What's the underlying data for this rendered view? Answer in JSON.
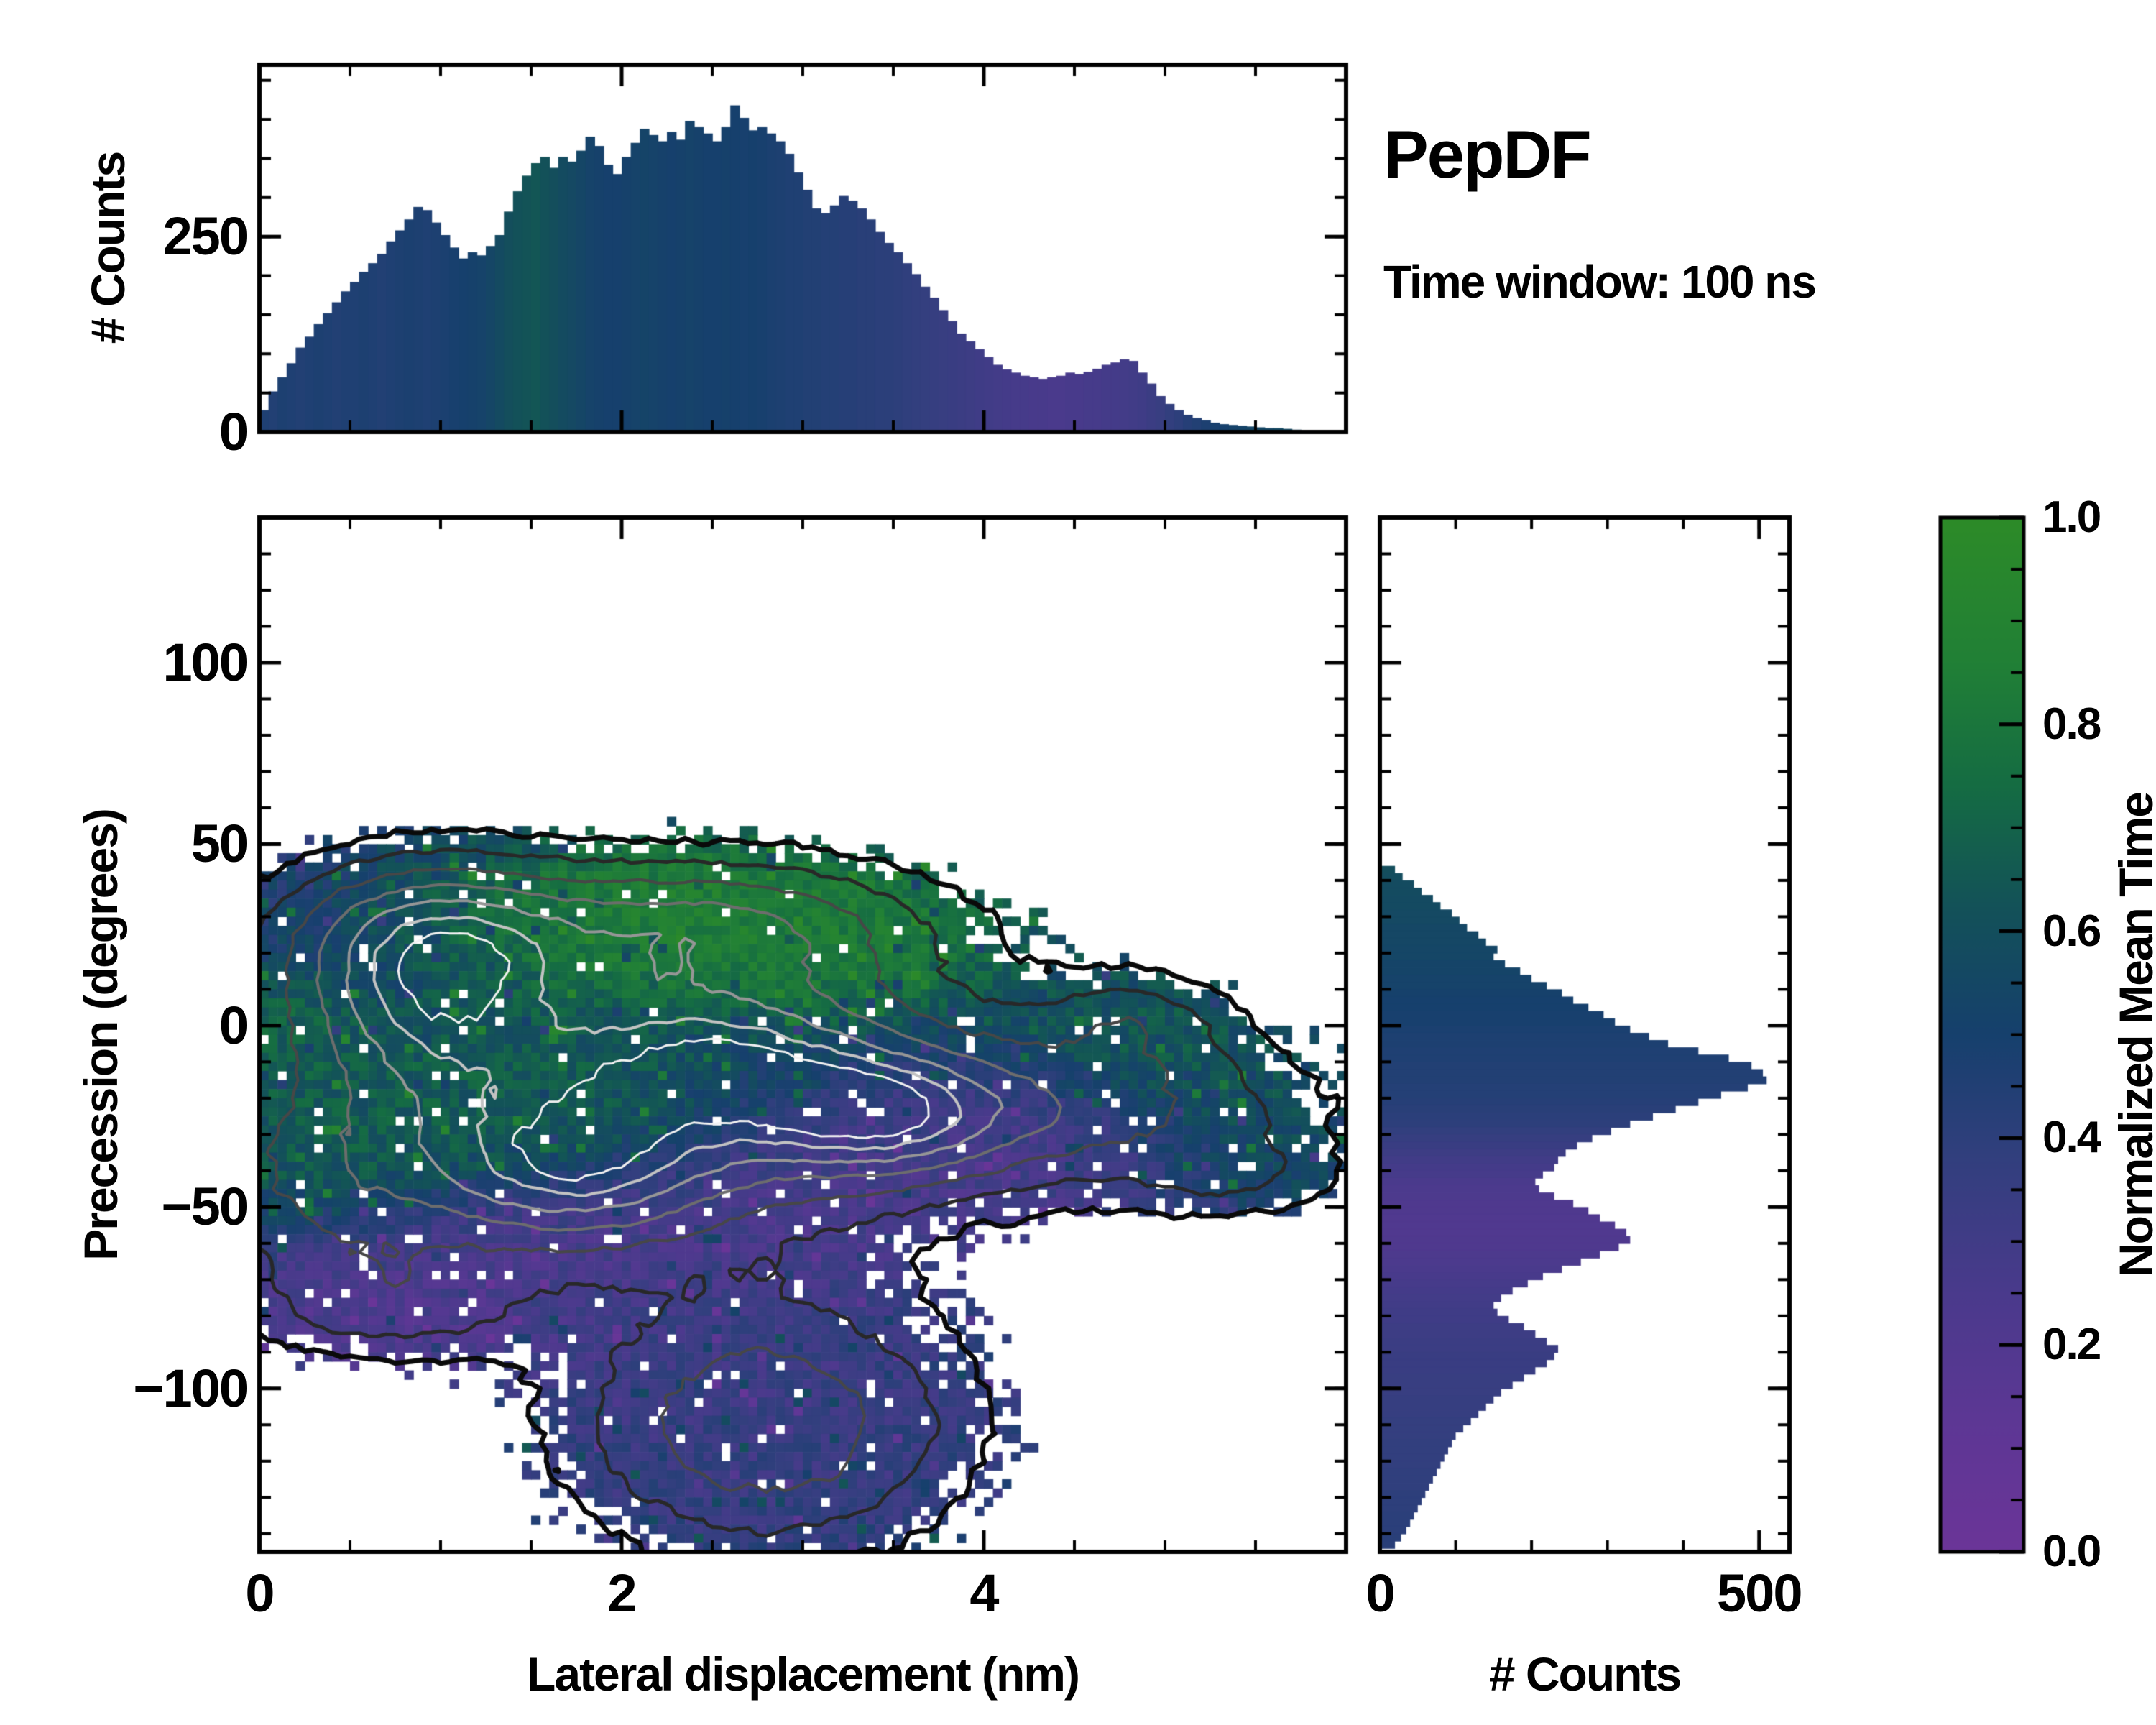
{
  "header": {
    "title": "PepDF",
    "subtitle": "Time window: 100 ns"
  },
  "colormap": {
    "stops": [
      [
        0,
        "#6b3598"
      ],
      [
        0.12,
        "#5e3795"
      ],
      [
        0.25,
        "#4a3a8c"
      ],
      [
        0.38,
        "#323f7e"
      ],
      [
        0.5,
        "#16406d"
      ],
      [
        0.62,
        "#135159"
      ],
      [
        0.74,
        "#156c43"
      ],
      [
        0.86,
        "#218036"
      ],
      [
        1,
        "#2d8b28"
      ]
    ]
  },
  "chart_data": [
    {
      "id": "top_histogram",
      "type": "bar",
      "ylabel": "# Counts",
      "xlim": [
        0,
        6
      ],
      "ylim": [
        0,
        470
      ],
      "ytick_labels": [
        "0",
        "250"
      ],
      "ytick_values": [
        0,
        250
      ],
      "ytick_minor_step": 50,
      "xtick_minor_step": 0.5,
      "xtick_major_values": [
        0,
        2,
        4
      ],
      "bin_width": 0.05,
      "x_start": 0,
      "values": [
        28,
        52,
        70,
        88,
        108,
        122,
        138,
        152,
        166,
        180,
        192,
        205,
        216,
        228,
        244,
        258,
        272,
        288,
        284,
        268,
        252,
        236,
        222,
        230,
        226,
        238,
        252,
        282,
        308,
        328,
        344,
        352,
        338,
        352,
        346,
        360,
        378,
        366,
        342,
        330,
        352,
        370,
        388,
        380,
        372,
        384,
        374,
        398,
        390,
        382,
        372,
        390,
        418,
        402,
        386,
        390,
        382,
        372,
        356,
        332,
        310,
        286,
        280,
        290,
        302,
        296,
        286,
        272,
        256,
        242,
        230,
        216,
        202,
        186,
        172,
        156,
        142,
        126,
        116,
        106,
        96,
        86,
        80,
        76,
        72,
        70,
        68,
        70,
        72,
        76,
        74,
        77,
        81,
        86,
        89,
        93,
        91,
        76,
        62,
        46,
        36,
        28,
        22,
        18,
        15,
        12,
        10,
        9,
        8,
        7,
        6,
        5,
        5,
        4,
        3,
        2
      ],
      "mean_time": [
        0.46,
        0.45,
        0.47,
        0.46,
        0.45,
        0.46,
        0.47,
        0.46,
        0.45,
        0.46,
        0.46,
        0.47,
        0.46,
        0.45,
        0.46,
        0.47,
        0.48,
        0.47,
        0.46,
        0.47,
        0.48,
        0.49,
        0.5,
        0.51,
        0.52,
        0.54,
        0.57,
        0.6,
        0.62,
        0.63,
        0.64,
        0.62,
        0.6,
        0.58,
        0.56,
        0.54,
        0.52,
        0.51,
        0.5,
        0.5,
        0.51,
        0.52,
        0.53,
        0.52,
        0.51,
        0.5,
        0.51,
        0.52,
        0.51,
        0.5,
        0.5,
        0.51,
        0.5,
        0.49,
        0.5,
        0.49,
        0.48,
        0.47,
        0.46,
        0.46,
        0.45,
        0.45,
        0.44,
        0.44,
        0.43,
        0.43,
        0.42,
        0.42,
        0.41,
        0.41,
        0.4,
        0.39,
        0.38,
        0.37,
        0.36,
        0.35,
        0.34,
        0.33,
        0.32,
        0.31,
        0.3,
        0.29,
        0.28,
        0.27,
        0.27,
        0.26,
        0.26,
        0.25,
        0.25,
        0.26,
        0.26,
        0.27,
        0.27,
        0.28,
        0.28,
        0.29,
        0.3,
        0.31,
        0.33,
        0.35,
        0.38,
        0.4,
        0.43,
        0.45,
        0.47,
        0.49,
        0.5,
        0.52,
        0.53,
        0.54,
        0.55,
        0.55,
        0.56,
        0.56,
        0.55,
        0.54
      ]
    },
    {
      "id": "joint_heatmap",
      "type": "heatmap",
      "xlabel": "Lateral displacement (nm)",
      "ylabel": "Precession (degrees)",
      "color_label": "Normalized Mean Time",
      "xlim": [
        0,
        6
      ],
      "ylim": [
        -145,
        140
      ],
      "xtick_labels": [
        "0",
        "2",
        "4"
      ],
      "xtick_values": [
        0,
        2,
        4
      ],
      "ytick_labels": [
        "100",
        "50",
        "0",
        "−50",
        "−100"
      ],
      "ytick_values": [
        100,
        50,
        0,
        -50,
        -100
      ],
      "xtick_minor_step": 0.5,
      "ytick_minor_step": 10,
      "cell_size": [
        0.05,
        2.5
      ],
      "occupancy_threshold": 0.1,
      "mean_time_base": 0.44,
      "density_blobs": [
        [
          2.0,
          -15,
          1.3,
          30,
          0.55
        ],
        [
          0.95,
          8,
          0.5,
          18,
          0.38
        ],
        [
          1.7,
          -40,
          0.55,
          14,
          0.42
        ],
        [
          3.45,
          -25,
          0.5,
          12,
          0.46
        ],
        [
          2.6,
          -10,
          0.6,
          14,
          0.3
        ],
        [
          0.9,
          27,
          0.55,
          14,
          0.34
        ],
        [
          2.5,
          28,
          0.8,
          12,
          0.34
        ],
        [
          2.8,
          -110,
          0.75,
          24,
          0.42
        ],
        [
          4.7,
          -22,
          0.8,
          15,
          0.3
        ],
        [
          4.85,
          2,
          0.35,
          9,
          0.18
        ],
        [
          5.4,
          -42,
          0.4,
          8,
          0.15
        ],
        [
          0.7,
          -77,
          0.55,
          11,
          0.22
        ],
        [
          0.35,
          -45,
          0.5,
          18,
          0.22
        ]
      ],
      "mean_time_blobs": [
        [
          2.3,
          30,
          0.9,
          13,
          0.95,
          5
        ],
        [
          3.3,
          22,
          0.5,
          12,
          0.85,
          3
        ],
        [
          1.3,
          -18,
          0.8,
          20,
          0.75,
          2.5
        ],
        [
          0.35,
          -38,
          0.45,
          16,
          0.72,
          2.5
        ],
        [
          0.1,
          0,
          0.25,
          10,
          0.8,
          2.5
        ],
        [
          2.1,
          -58,
          1.1,
          10,
          0.2,
          4
        ],
        [
          3.6,
          -45,
          0.8,
          14,
          0.22,
          3
        ],
        [
          4.3,
          -30,
          0.45,
          10,
          0.25,
          2.5
        ],
        [
          0.7,
          -78,
          0.6,
          11,
          0.17,
          6
        ],
        [
          5.2,
          -12,
          0.6,
          12,
          0.68,
          2.5
        ],
        [
          5.6,
          -35,
          0.4,
          10,
          0.62,
          2.5
        ],
        [
          4.85,
          2,
          0.35,
          9,
          0.7,
          2.5
        ],
        [
          2.8,
          -112,
          0.9,
          22,
          0.3,
          2.5
        ],
        [
          2.3,
          -90,
          0.7,
          8,
          0.25,
          1.5
        ],
        [
          0.6,
          30,
          0.7,
          15,
          0.42,
          1.5
        ]
      ],
      "contour_levels": [
        {
          "level": 0.105,
          "color": "#0a0a0a",
          "width": 7
        },
        {
          "level": 0.2,
          "color": "#282828",
          "width": 5
        },
        {
          "level": 0.32,
          "color": "#474747",
          "width": 4
        },
        {
          "level": 0.45,
          "color": "#6d6d6d",
          "width": 4
        },
        {
          "level": 0.58,
          "color": "#969696",
          "width": 4
        },
        {
          "level": 0.7,
          "color": "#c2c2c2",
          "width": 4
        },
        {
          "level": 0.79,
          "color": "#f1f1f1",
          "width": 3
        }
      ]
    },
    {
      "id": "right_histogram",
      "type": "bar-horizontal",
      "xlabel": "# Counts",
      "xlim": [
        0,
        540
      ],
      "xtick_labels": [
        "0",
        "500"
      ],
      "xtick_values": [
        0,
        500
      ],
      "xtick_minor_step": 100,
      "ytick_minor_step": 10,
      "bin_height_deg": 2,
      "y_start_deg": 44,
      "values": [
        20,
        30,
        45,
        55,
        70,
        80,
        95,
        105,
        115,
        130,
        140,
        155,
        150,
        165,
        185,
        200,
        220,
        240,
        255,
        275,
        295,
        310,
        330,
        355,
        380,
        420,
        460,
        490,
        505,
        510,
        485,
        450,
        420,
        390,
        360,
        330,
        305,
        280,
        260,
        245,
        235,
        230,
        215,
        205,
        210,
        230,
        255,
        275,
        290,
        310,
        325,
        330,
        315,
        290,
        265,
        240,
        215,
        195,
        175,
        160,
        150,
        155,
        170,
        190,
        205,
        220,
        235,
        230,
        220,
        205,
        190,
        175,
        160,
        150,
        140,
        130,
        120,
        110,
        100,
        95,
        90,
        85,
        80,
        75,
        70,
        65,
        60,
        55,
        50,
        45,
        40,
        35,
        28,
        20
      ],
      "mean_time": [
        0.6,
        0.59,
        0.58,
        0.58,
        0.57,
        0.57,
        0.56,
        0.56,
        0.55,
        0.55,
        0.55,
        0.54,
        0.54,
        0.53,
        0.53,
        0.52,
        0.52,
        0.51,
        0.5,
        0.5,
        0.49,
        0.49,
        0.48,
        0.47,
        0.47,
        0.46,
        0.46,
        0.45,
        0.45,
        0.45,
        0.44,
        0.44,
        0.43,
        0.42,
        0.41,
        0.4,
        0.38,
        0.36,
        0.34,
        0.32,
        0.3,
        0.28,
        0.27,
        0.25,
        0.24,
        0.23,
        0.22,
        0.22,
        0.21,
        0.21,
        0.21,
        0.22,
        0.22,
        0.23,
        0.24,
        0.25,
        0.26,
        0.27,
        0.28,
        0.29,
        0.3,
        0.31,
        0.31,
        0.32,
        0.32,
        0.33,
        0.33,
        0.34,
        0.34,
        0.34,
        0.35,
        0.35,
        0.35,
        0.36,
        0.36,
        0.36,
        0.37,
        0.37,
        0.37,
        0.38,
        0.38,
        0.38,
        0.38,
        0.39,
        0.39,
        0.39,
        0.4,
        0.4,
        0.4,
        0.41,
        0.41,
        0.41,
        0.42,
        0.42
      ]
    },
    {
      "id": "colorbar",
      "type": "colorbar",
      "label": "Normalized Mean Time",
      "tick_labels": [
        "1.0",
        "0.8",
        "0.6",
        "0.4",
        "0.2",
        "0.0"
      ],
      "tick_values": [
        1.0,
        0.8,
        0.6,
        0.4,
        0.2,
        0.0
      ],
      "minor_step": 0.05,
      "range": [
        0,
        1
      ]
    }
  ]
}
